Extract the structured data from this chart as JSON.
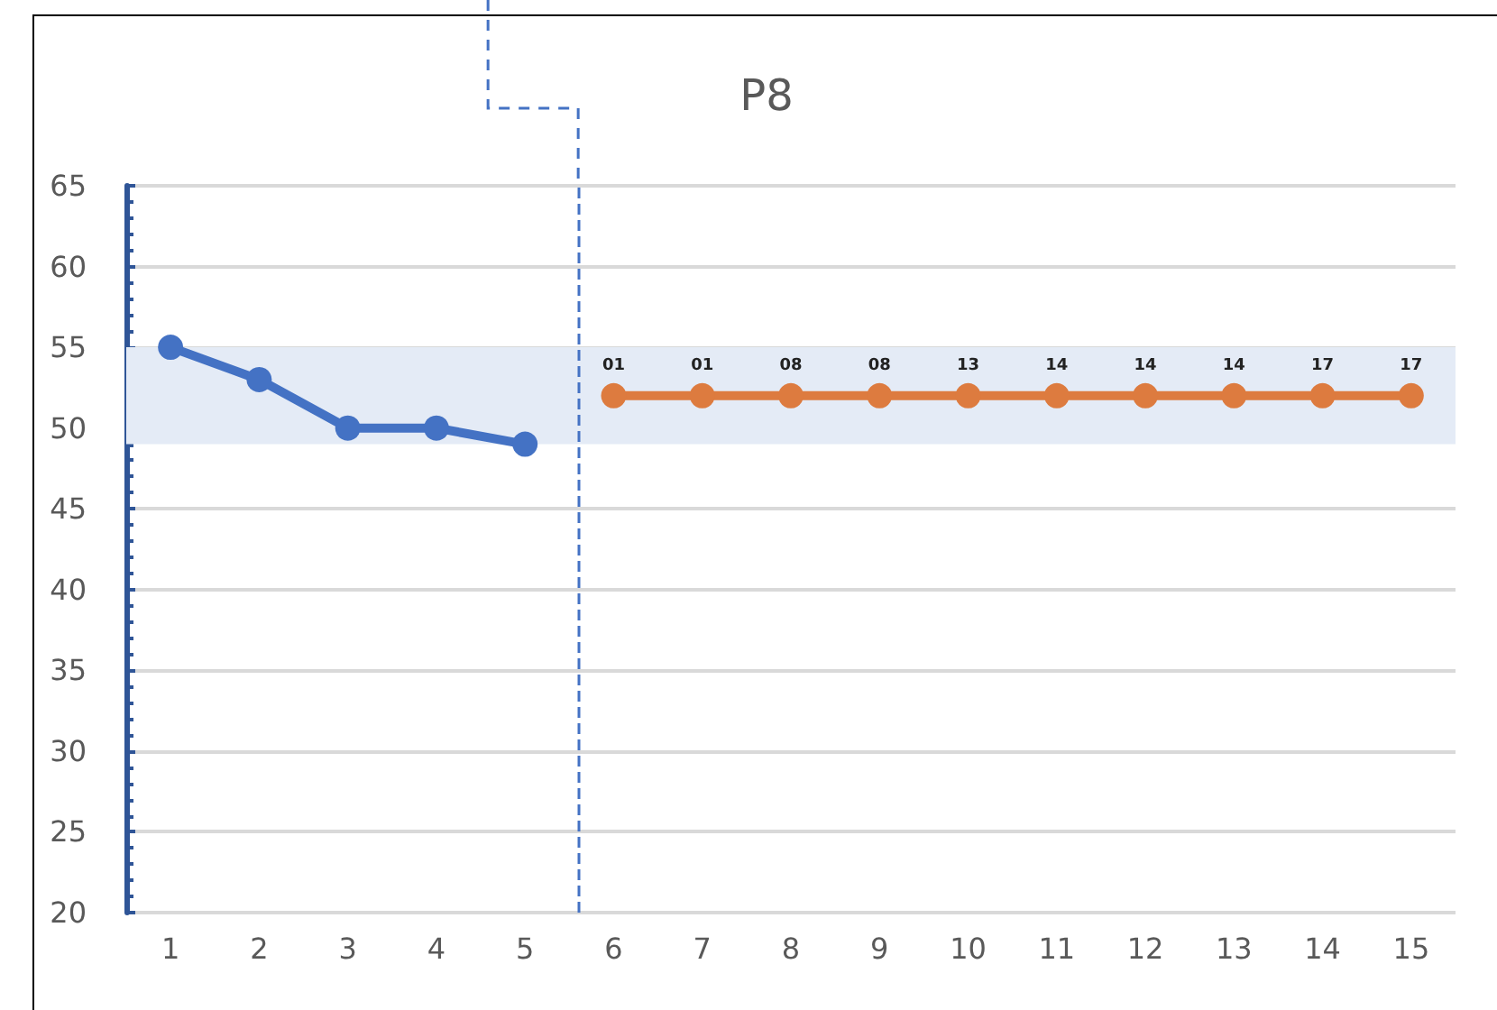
{
  "chart_data": {
    "type": "line",
    "title": "P8",
    "xlim": [
      0.5,
      15.5
    ],
    "xticks": [
      1,
      2,
      3,
      4,
      5,
      6,
      7,
      8,
      9,
      10,
      11,
      12,
      13,
      14,
      15
    ],
    "ylim": [
      20,
      65
    ],
    "yticks": [
      20,
      25,
      30,
      35,
      40,
      45,
      50,
      55,
      60,
      65
    ],
    "series": [
      {
        "color": "#4472c4",
        "x": [
          1,
          2,
          3,
          4,
          5
        ],
        "values": [
          55,
          53,
          50,
          50,
          49
        ]
      },
      {
        "color": "#dd7b3f",
        "x": [
          6,
          7,
          8,
          9,
          10,
          11,
          12,
          13,
          14,
          15
        ],
        "values": [
          52,
          52,
          52,
          52,
          52,
          52,
          52,
          52,
          52,
          52
        ]
      }
    ],
    "annotations": [
      {
        "text": "01",
        "x": 6,
        "y": 52
      },
      {
        "text": "01",
        "x": 7,
        "y": 52
      },
      {
        "text": "08",
        "x": 8,
        "y": 52
      },
      {
        "text": "08",
        "x": 9,
        "y": 52
      },
      {
        "text": "13",
        "x": 10,
        "y": 52
      },
      {
        "text": "14",
        "x": 11,
        "y": 52
      },
      {
        "text": "14",
        "x": 12,
        "y": 52
      },
      {
        "text": "14",
        "x": 13,
        "y": 52
      },
      {
        "text": "17",
        "x": 14,
        "y": 52
      },
      {
        "text": "17",
        "x": 15,
        "y": 52
      }
    ],
    "bands": [
      {
        "axis": "y",
        "from": 49,
        "to": 55,
        "color": "#e4ebf6"
      }
    ],
    "ref_lines": [
      {
        "axis": "x",
        "value": 5.6,
        "color": "#4472c4",
        "line_style": "dashed"
      }
    ],
    "grid": "y",
    "marker": "circle",
    "line_style": "solid"
  }
}
